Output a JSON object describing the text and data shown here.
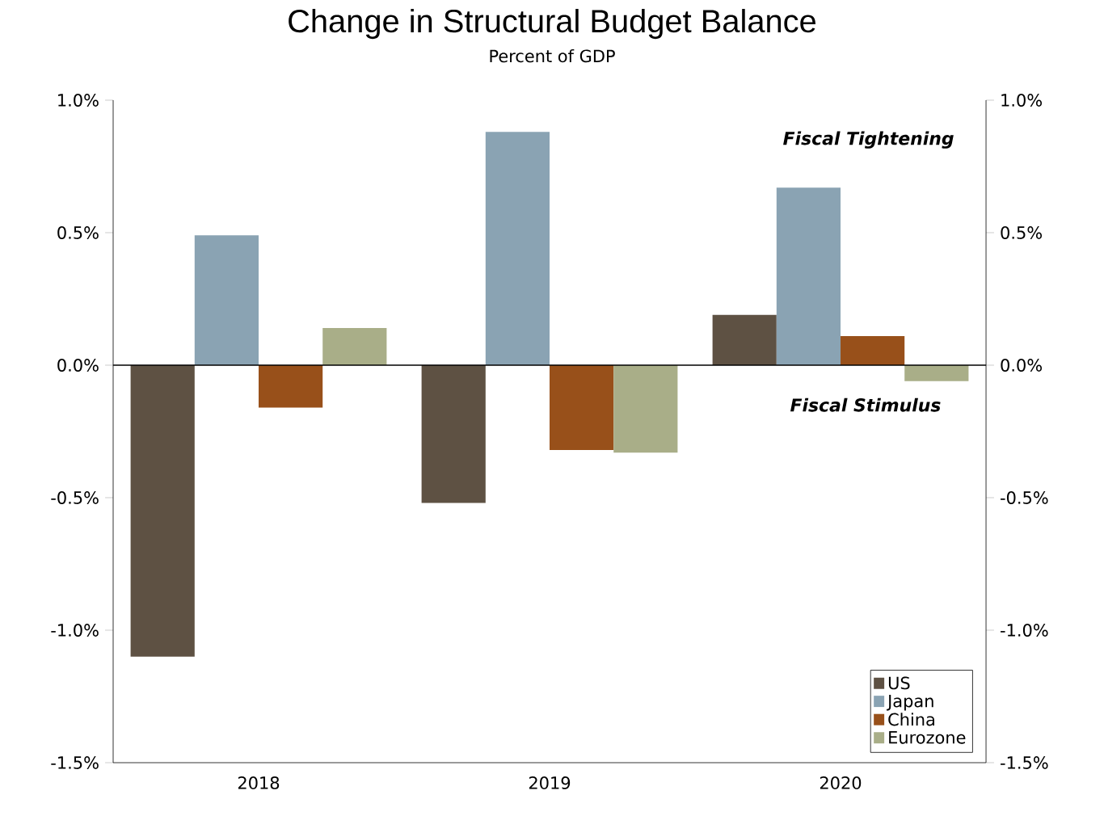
{
  "chart_data": {
    "type": "bar",
    "title": "Change in Structural Budget Balance",
    "subtitle": "Percent of GDP",
    "categories": [
      "2018",
      "2019",
      "2020"
    ],
    "series": [
      {
        "name": "US",
        "color": "#5e5143",
        "values": [
          -1.1,
          -0.52,
          0.19
        ]
      },
      {
        "name": "Japan",
        "color": "#8aa3b3",
        "values": [
          0.49,
          0.88,
          0.67
        ]
      },
      {
        "name": "China",
        "color": "#98501a",
        "values": [
          -0.16,
          -0.32,
          0.11
        ]
      },
      {
        "name": "Eurozone",
        "color": "#a9ae88",
        "values": [
          0.14,
          -0.33,
          -0.06
        ]
      }
    ],
    "ylim": [
      -1.5,
      1.0
    ],
    "yticks": [
      {
        "value": -1.5,
        "label": "-1.5%"
      },
      {
        "value": -1.0,
        "label": "-1.0%"
      },
      {
        "value": -0.5,
        "label": "-0.5%"
      },
      {
        "value": 0.0,
        "label": "0.0%"
      },
      {
        "value": 0.5,
        "label": "0.5%"
      },
      {
        "value": 1.0,
        "label": "1.0%"
      }
    ],
    "y2lim": [
      -1.5,
      1.0
    ],
    "y2ticks": [
      {
        "value": -1.5,
        "label": "-1.5%"
      },
      {
        "value": -1.0,
        "label": "-1.0%"
      },
      {
        "value": -0.5,
        "label": "-0.5%"
      },
      {
        "value": 0.0,
        "label": "0.0%"
      },
      {
        "value": 0.5,
        "label": "0.5%"
      },
      {
        "value": 1.0,
        "label": "1.0%"
      }
    ],
    "ref_lines": [
      {
        "axis": "y",
        "value": 0,
        "color": "#000000"
      }
    ],
    "annotations": [
      "Fiscal Tightening",
      "Fiscal Stimulus"
    ],
    "grid": false,
    "legend": "bottom right"
  }
}
